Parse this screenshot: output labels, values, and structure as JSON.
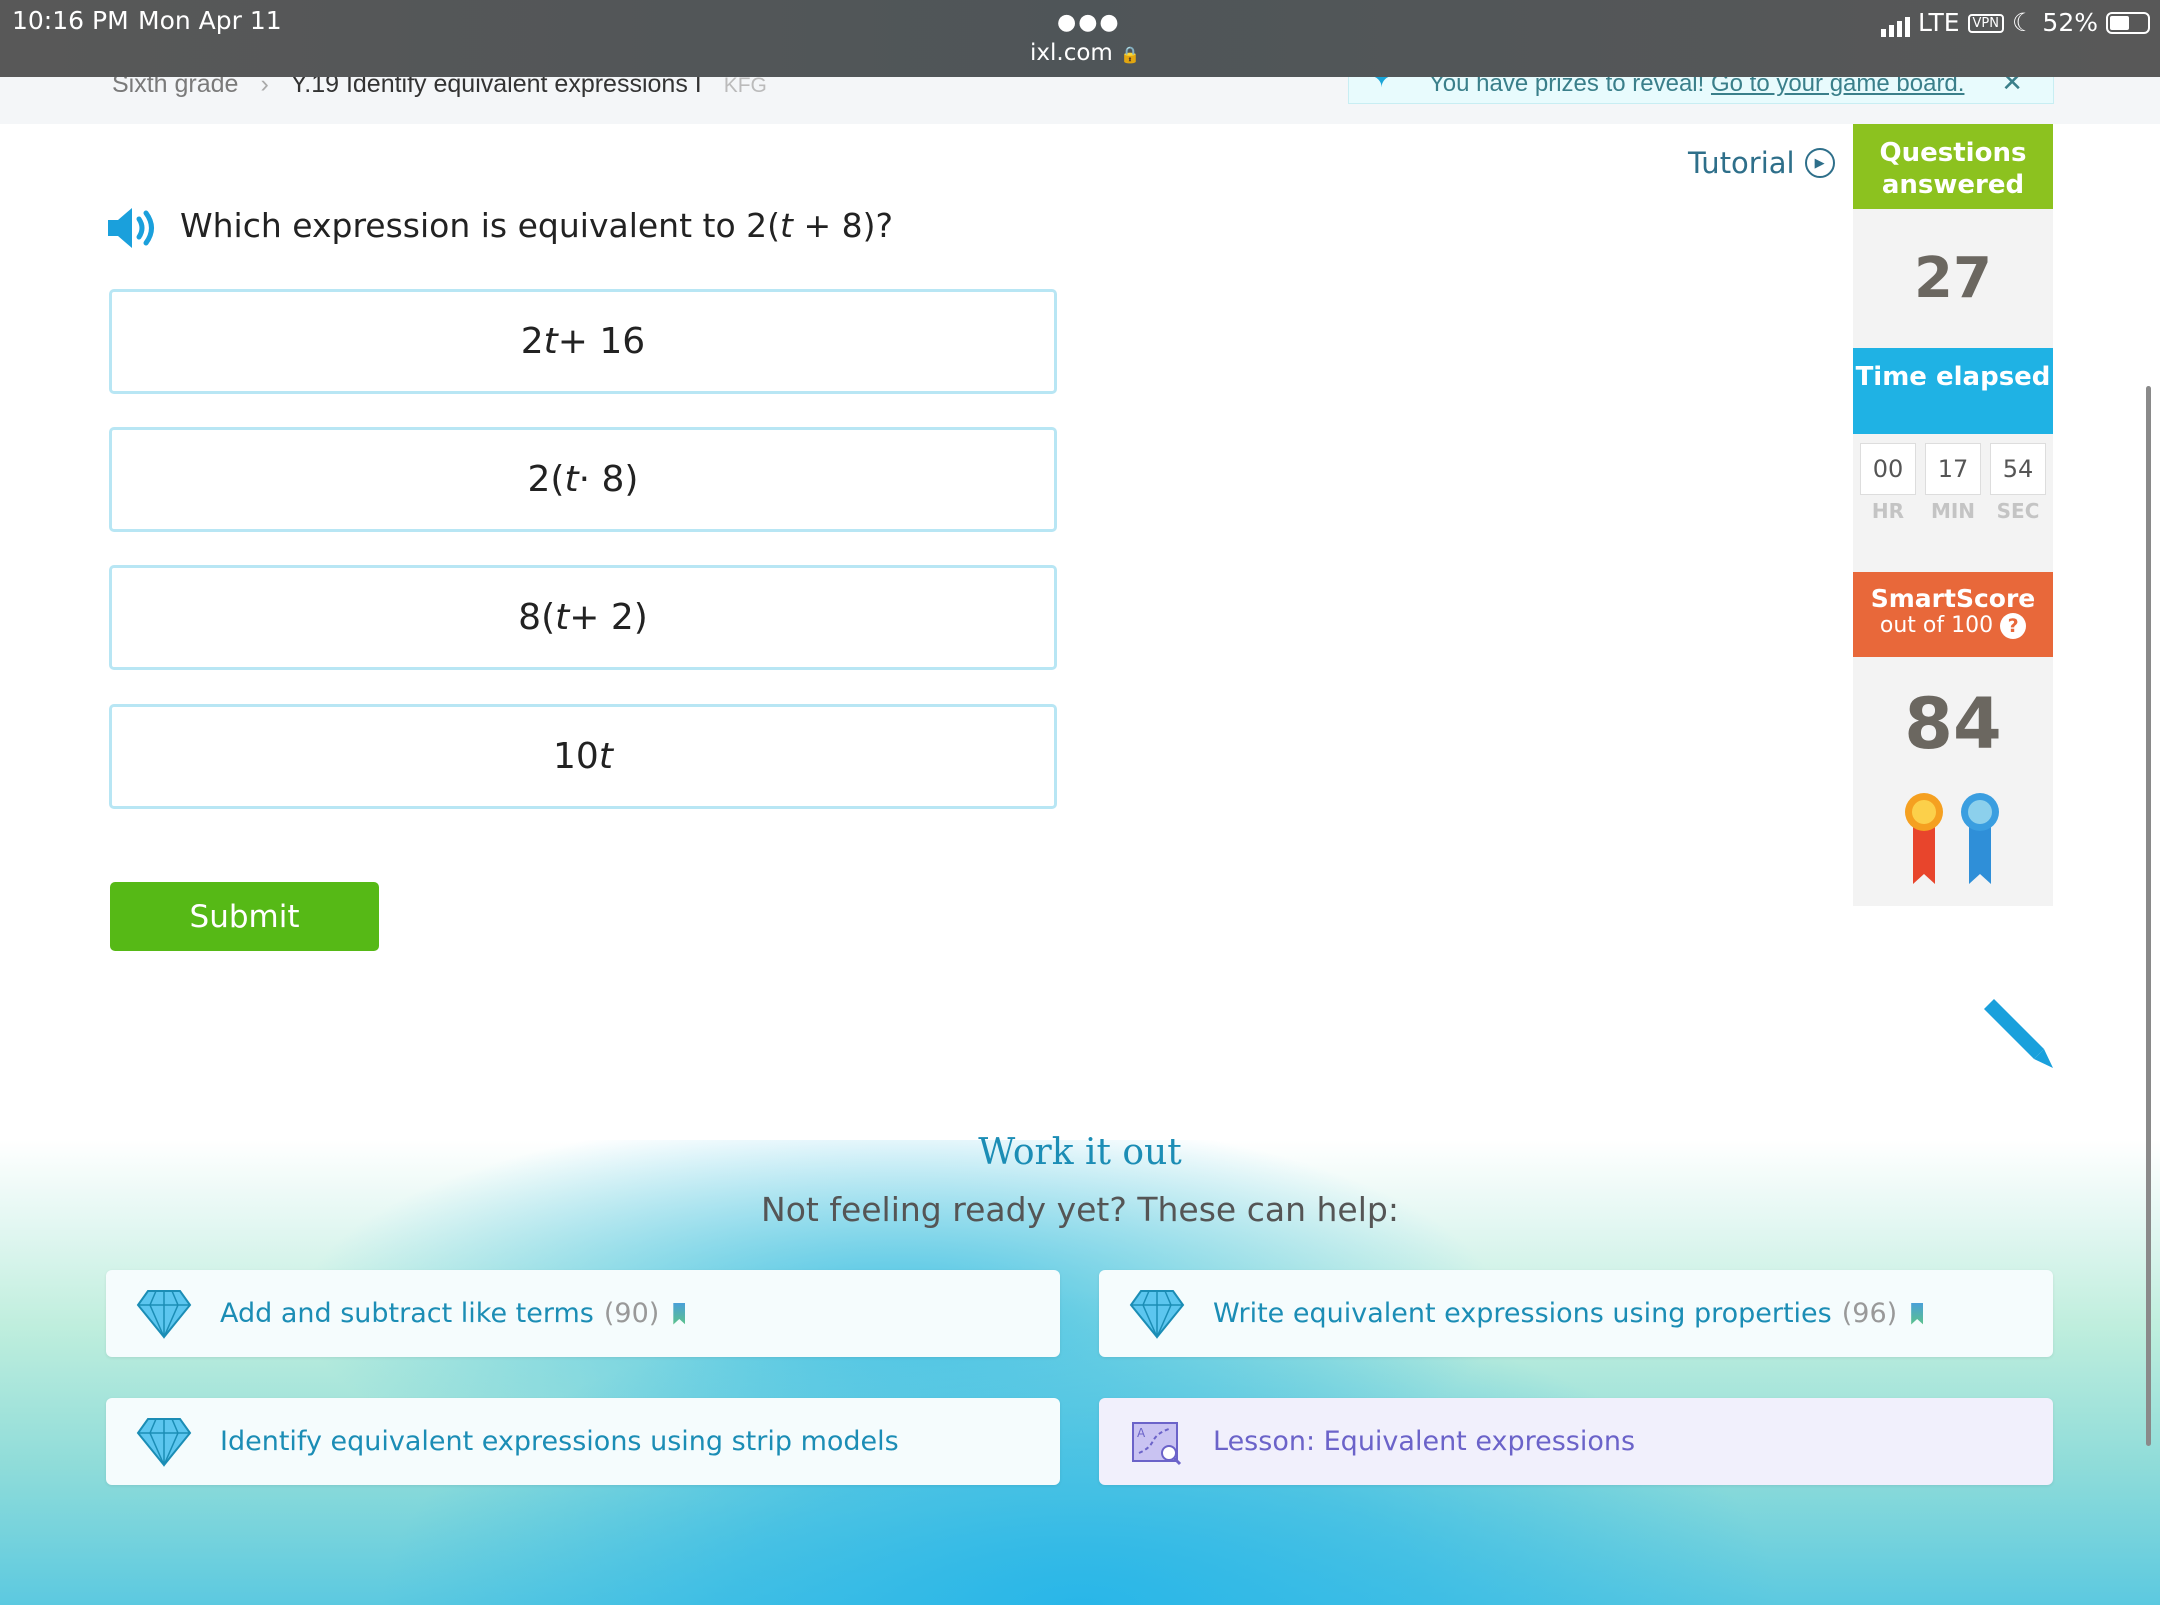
{
  "status": {
    "time": "10:16 PM",
    "date": "Mon Apr 11",
    "url": "ixl.com",
    "network": "LTE",
    "vpn": "VPN",
    "battery": "52%"
  },
  "breadcrumb": {
    "grade": "Sixth grade",
    "skill": "Y.19 Identify equivalent expressions I",
    "code": "KFG"
  },
  "prize": {
    "text": "You have prizes to reveal!",
    "link": "Go to your game board."
  },
  "tutorial": "Tutorial",
  "question": {
    "pre": "Which expression is equivalent to 2(",
    "var": "t",
    "post": " + 8)?"
  },
  "answers": [
    {
      "pre": "2",
      "var": "t",
      "post": " + 16"
    },
    {
      "pre": "2(",
      "var": "t",
      "post": " · 8)"
    },
    {
      "pre": "8(",
      "var": "t",
      "post": " + 2)"
    },
    {
      "pre": "10",
      "var": "t",
      "post": ""
    }
  ],
  "submit": "Submit",
  "sidebar": {
    "questions_label": "Questions answered",
    "questions": "27",
    "time_label": "Time elapsed",
    "hr": "00",
    "min": "17",
    "sec": "54",
    "hr_label": "HR",
    "min_label": "MIN",
    "sec_label": "SEC",
    "smartscore_label": "SmartScore",
    "smartscore_sub": "out of 100",
    "smartscore": "84",
    "colors": {
      "green": "#8cc21f",
      "blue": "#1fb2e4",
      "orange": "#e8683a"
    }
  },
  "help": {
    "title": "Work it out",
    "subtitle": "Not feeling ready yet? These can help:",
    "items": [
      {
        "label": "Add and subtract like terms",
        "count": "(90)"
      },
      {
        "label": "Write equivalent expressions using properties",
        "count": "(96)"
      },
      {
        "label": "Identify equivalent expressions using strip models"
      },
      {
        "label": "Lesson: Equivalent expressions"
      }
    ]
  }
}
